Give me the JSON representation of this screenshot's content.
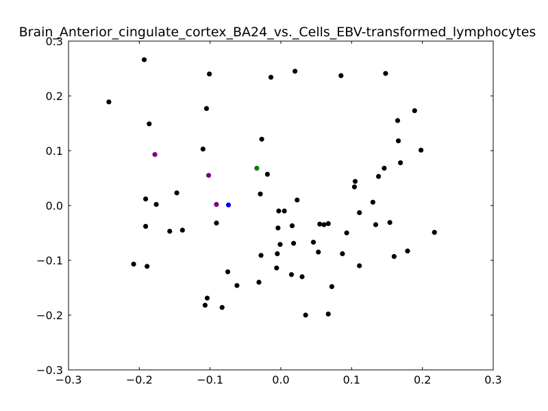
{
  "chart_data": {
    "type": "scatter",
    "title": "Brain_Anterior_cingulate_cortex_BA24_vs._Cells_EBV-transformed_lymphocytes",
    "xlabel": "",
    "ylabel": "",
    "xlim": [
      -0.3,
      0.3
    ],
    "ylim": [
      -0.3,
      0.3
    ],
    "xticks": [
      -0.3,
      -0.2,
      -0.1,
      0.0,
      0.1,
      0.2,
      0.3
    ],
    "yticks": [
      -0.3,
      -0.2,
      -0.1,
      0.0,
      0.1,
      0.2,
      0.3
    ],
    "xtick_labels": [
      "−0.3",
      "−0.2",
      "−0.1",
      "0.0",
      "0.1",
      "0.2",
      "0.3"
    ],
    "ytick_labels": [
      "−0.3",
      "−0.2",
      "−0.1",
      "0.0",
      "0.1",
      "0.2",
      "0.3"
    ],
    "grid": false,
    "series": [
      {
        "color": "#000000",
        "points": [
          [
            -0.193,
            0.266
          ],
          [
            -0.101,
            0.24
          ],
          [
            -0.014,
            0.234
          ],
          [
            0.02,
            0.245
          ],
          [
            0.085,
            0.237
          ],
          [
            0.148,
            0.241
          ],
          [
            -0.243,
            0.189
          ],
          [
            -0.105,
            0.177
          ],
          [
            -0.186,
            0.149
          ],
          [
            0.189,
            0.173
          ],
          [
            0.165,
            0.155
          ],
          [
            0.166,
            0.118
          ],
          [
            -0.027,
            0.121
          ],
          [
            -0.11,
            0.103
          ],
          [
            0.198,
            0.101
          ],
          [
            0.169,
            0.078
          ],
          [
            0.146,
            0.068
          ],
          [
            -0.019,
            0.057
          ],
          [
            0.138,
            0.053
          ],
          [
            0.105,
            0.044
          ],
          [
            0.104,
            0.034
          ],
          [
            -0.147,
            0.023
          ],
          [
            -0.029,
            0.021
          ],
          [
            -0.191,
            0.012
          ],
          [
            0.023,
            0.01
          ],
          [
            0.13,
            0.006
          ],
          [
            -0.176,
            0.002
          ],
          [
            -0.003,
            -0.01
          ],
          [
            0.005,
            -0.01
          ],
          [
            0.111,
            -0.013
          ],
          [
            -0.091,
            -0.032
          ],
          [
            0.055,
            -0.034
          ],
          [
            0.061,
            -0.035
          ],
          [
            0.067,
            -0.033
          ],
          [
            0.154,
            -0.031
          ],
          [
            0.134,
            -0.035
          ],
          [
            -0.191,
            -0.038
          ],
          [
            0.016,
            -0.037
          ],
          [
            -0.004,
            -0.041
          ],
          [
            -0.139,
            -0.045
          ],
          [
            -0.157,
            -0.047
          ],
          [
            0.217,
            -0.049
          ],
          [
            0.093,
            -0.05
          ],
          [
            0.046,
            -0.067
          ],
          [
            0.018,
            -0.069
          ],
          [
            -0.001,
            -0.071
          ],
          [
            0.053,
            -0.085
          ],
          [
            0.087,
            -0.088
          ],
          [
            -0.005,
            -0.088
          ],
          [
            -0.028,
            -0.091
          ],
          [
            0.16,
            -0.093
          ],
          [
            0.179,
            -0.083
          ],
          [
            -0.208,
            -0.107
          ],
          [
            -0.189,
            -0.111
          ],
          [
            0.111,
            -0.11
          ],
          [
            -0.006,
            -0.114
          ],
          [
            -0.075,
            -0.121
          ],
          [
            0.015,
            -0.126
          ],
          [
            0.03,
            -0.13
          ],
          [
            -0.031,
            -0.14
          ],
          [
            -0.062,
            -0.146
          ],
          [
            0.072,
            -0.148
          ],
          [
            -0.104,
            -0.169
          ],
          [
            -0.107,
            -0.182
          ],
          [
            -0.083,
            -0.186
          ],
          [
            0.035,
            -0.2
          ],
          [
            0.067,
            -0.198
          ]
        ]
      },
      {
        "color": "#800080",
        "points": [
          [
            -0.178,
            0.093
          ],
          [
            -0.102,
            0.055
          ],
          [
            -0.091,
            0.002
          ]
        ]
      },
      {
        "color": "#008000",
        "points": [
          [
            -0.034,
            0.068
          ]
        ]
      },
      {
        "color": "#0000ff",
        "points": [
          [
            -0.074,
            0.001
          ]
        ]
      }
    ]
  }
}
